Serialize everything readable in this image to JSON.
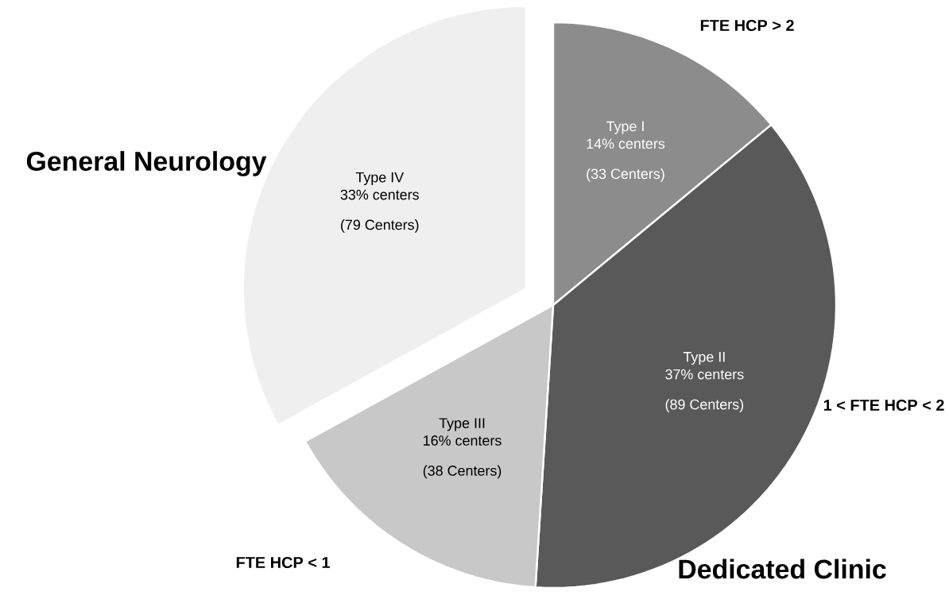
{
  "chart_data": {
    "type": "pie",
    "categories": [
      "Type I",
      "Type II",
      "Type III",
      "Type IV"
    ],
    "values": [
      14,
      37,
      16,
      33
    ],
    "colors": [
      "#8c8c8c",
      "#595959",
      "#c8c8c8",
      "#efefef"
    ],
    "value_labels": [
      "14% centers",
      "37% centers",
      "16% centers",
      "33% centers"
    ],
    "annotations": [
      "(33 Centers)",
      "(89 Centers)",
      "(38 Centers)",
      "(79 Centers)",
      "FTE HCP > 2",
      "1 < FTE HCP < 2",
      "FTE HCP < 1",
      "Dedicated Clinic",
      "General Neurology"
    ]
  }
}
